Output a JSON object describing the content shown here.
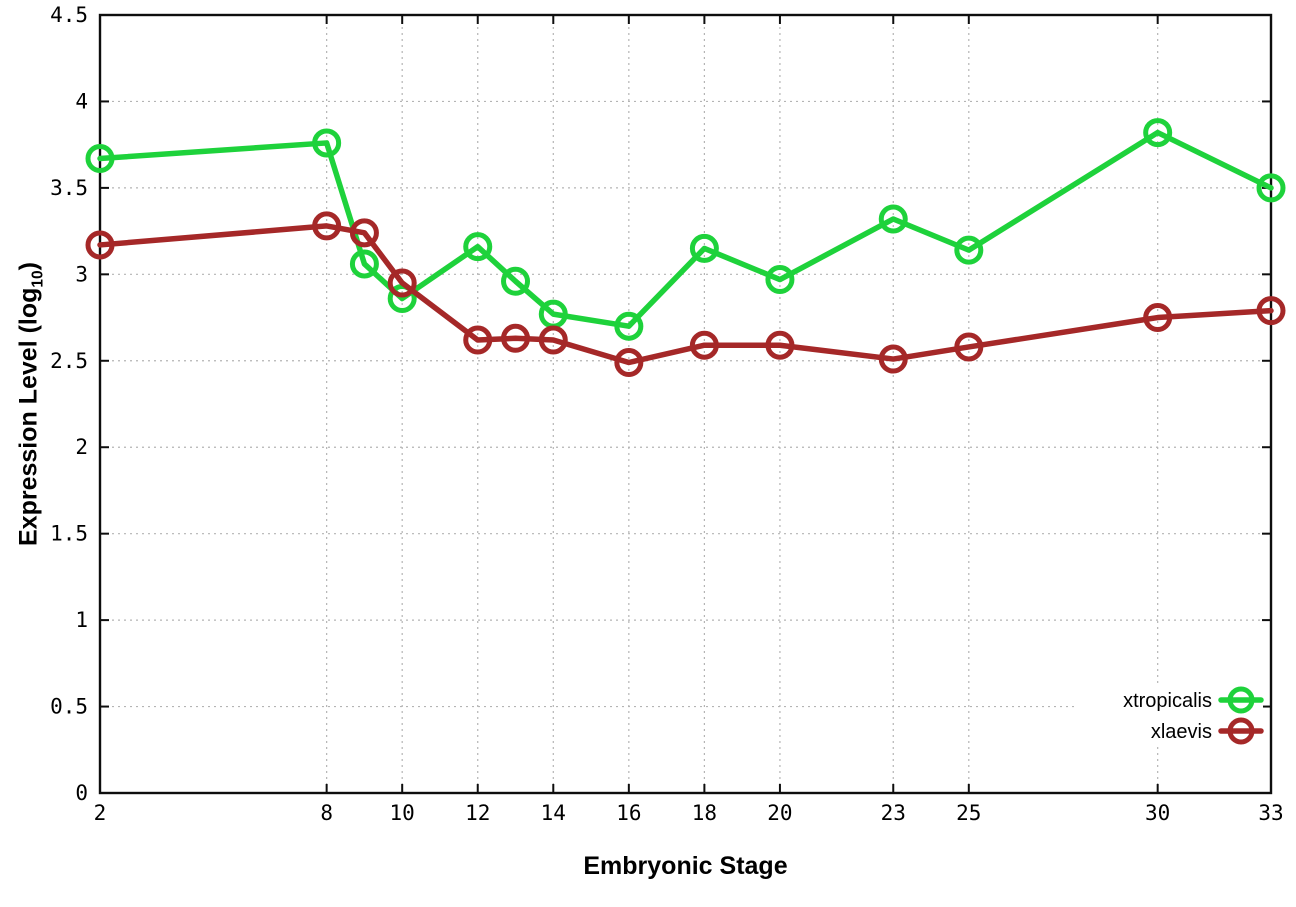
{
  "chart_data": {
    "type": "line",
    "x": [
      2,
      8,
      9,
      10,
      12,
      13,
      14,
      16,
      18,
      20,
      23,
      25,
      30,
      33
    ],
    "series": [
      {
        "name": "xtropicalis",
        "color": "#1ed23b",
        "values": [
          3.67,
          3.76,
          3.06,
          2.86,
          3.16,
          2.96,
          2.77,
          2.7,
          3.15,
          2.97,
          3.32,
          3.14,
          3.82,
          3.5
        ]
      },
      {
        "name": "xlaevis",
        "color": "#a52828",
        "values": [
          3.17,
          3.28,
          3.24,
          2.95,
          2.62,
          2.63,
          2.62,
          2.49,
          2.59,
          2.59,
          2.51,
          2.58,
          2.75,
          2.79
        ]
      }
    ],
    "title": "",
    "xlabel": "Embryonic Stage",
    "ylabel": "Expression Level (log10)",
    "ylabel_parts": {
      "main": "Expression Level (log",
      "sub": "10",
      "close": ")"
    },
    "xlim": [
      2,
      33
    ],
    "ylim": [
      0,
      4.5
    ],
    "x_ticks": {
      "values": [
        2,
        8,
        10,
        12,
        14,
        16,
        18,
        20,
        23,
        25,
        30,
        33
      ],
      "labels": [
        "2",
        "8",
        "10",
        "12",
        "14",
        "16",
        "18",
        "20",
        "23",
        "25",
        "30",
        "33"
      ]
    },
    "y_ticks": {
      "values": [
        0,
        0.5,
        1,
        1.5,
        2,
        2.5,
        3,
        3.5,
        4,
        4.5
      ],
      "labels": [
        "0",
        "0.5",
        "1",
        "1.5",
        "2",
        "2.5",
        "3",
        "3.5",
        "4",
        "4.5"
      ]
    },
    "grid": true,
    "legend_position": "bottom-right",
    "marker": "open-circle"
  },
  "colors": {
    "background": "#ffffff",
    "grid": "#b4b4b4",
    "axis": "#0e0e0e",
    "xtropicalis": "#1ed23b",
    "xlaevis": "#a52828"
  }
}
